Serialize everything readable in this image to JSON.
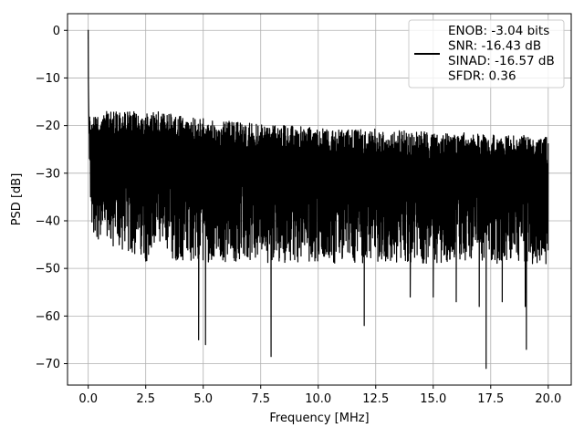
{
  "chart_data": {
    "type": "line",
    "title": "",
    "xlabel": "Frequency [MHz]",
    "ylabel": "PSD [dB]",
    "xlim": [
      -0.9,
      21.0
    ],
    "ylim": [
      -74.5,
      3.5
    ],
    "xticks": [
      0.0,
      2.5,
      5.0,
      7.5,
      10.0,
      12.5,
      15.0,
      17.5,
      20.0
    ],
    "xtick_labels": [
      "0.0",
      "2.5",
      "5.0",
      "7.5",
      "10.0",
      "12.5",
      "15.0",
      "17.5",
      "20.0"
    ],
    "yticks": [
      0,
      -10,
      -20,
      -30,
      -40,
      -50,
      -60,
      -70
    ],
    "ytick_labels": [
      "0",
      "−10",
      "−20",
      "−30",
      "−40",
      "−50",
      "−60",
      "−70"
    ],
    "grid": true,
    "legend_position": "top-right",
    "series": [
      {
        "legend_lines": [
          "ENOB: -3.04 bits",
          "SNR: -16.43 dB",
          "SINAD: -16.57 dB",
          "SFDR: 0.36"
        ],
        "color": "#000000",
        "x": [
          0.0,
          0.01,
          0.02,
          0.04,
          0.06,
          0.08,
          0.1,
          0.15,
          0.2,
          0.3,
          0.4,
          0.5,
          0.75,
          1.0,
          1.5,
          2.0,
          2.5,
          3.0,
          4.0,
          4.8,
          5.1,
          6.0,
          7.0,
          7.95,
          9.0,
          10.0,
          11.0,
          12.0,
          13.0,
          14.0,
          15.0,
          16.0,
          17.0,
          17.3,
          18.0,
          19.0,
          19.05,
          20.0
        ],
        "upper_envelope": [
          0.0,
          -8.0,
          -12.0,
          -15.0,
          -17.0,
          -18.0,
          -18.5,
          -19.0,
          -18.0,
          -17.5,
          -17.0,
          -17.5,
          -17.0,
          -17.0,
          -17.0,
          -17.0,
          -17.5,
          -17.0,
          -18.0,
          -18.5,
          -18.5,
          -19.0,
          -19.5,
          -20.0,
          -20.0,
          -20.5,
          -21.0,
          -20.5,
          -21.0,
          -21.0,
          -21.5,
          -21.5,
          -21.5,
          -22.0,
          -22.0,
          -22.0,
          -22.0,
          -22.5
        ],
        "lower_envelope": [
          -10.0,
          -15.0,
          -20.0,
          -28.0,
          -32.0,
          -35.0,
          -38.0,
          -44.0,
          -48.0,
          -45.0,
          -47.0,
          -47.0,
          -48.0,
          -49.0,
          -50.0,
          -51.0,
          -52.0,
          -51.0,
          -52.0,
          -65.0,
          -66.0,
          -52.0,
          -53.0,
          -68.5,
          -53.0,
          -54.0,
          -54.0,
          -62.0,
          -55.0,
          -56.0,
          -56.0,
          -57.0,
          -58.0,
          -71.0,
          -57.0,
          -58.0,
          -67.0,
          -55.0
        ],
        "y_typical_range": [
          -45,
          -20
        ]
      }
    ]
  }
}
